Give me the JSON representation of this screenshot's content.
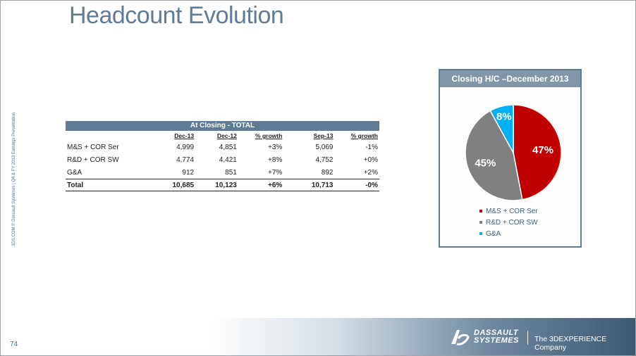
{
  "slide": {
    "title": "Headcount Evolution",
    "side_caption": "3DS.COM © Dassault Systèmes | Q4 & FY 2013 Earnings Presentation",
    "page_number": "74"
  },
  "table": {
    "header": "At Closing - TOTAL",
    "columns": [
      "Dec-13",
      "Dec-12",
      "% growth",
      "Sep-13",
      "% growth"
    ],
    "rows": [
      {
        "label": "M&S + COR Ser",
        "values": [
          "4,999",
          "4,851",
          "+3%",
          "5,069",
          "-1%"
        ]
      },
      {
        "label": "R&D + COR SW",
        "values": [
          "4,774",
          "4,421",
          "+8%",
          "4,752",
          "+0%"
        ]
      },
      {
        "label": "G&A",
        "values": [
          "912",
          "851",
          "+7%",
          "892",
          "+2%"
        ]
      },
      {
        "label": "Total",
        "values": [
          "10,685",
          "10,123",
          "+6%",
          "10,713",
          "-0%"
        ]
      }
    ]
  },
  "chart_data": {
    "type": "pie",
    "title": "Closing H/C –December 2013",
    "legend": "bottom",
    "slices": [
      {
        "name": "M&S + COR Ser",
        "value": 47,
        "label": "47%",
        "color": "#c00000"
      },
      {
        "name": "R&D + COR SW",
        "value": 45,
        "label": "45%",
        "color": "#808080"
      },
      {
        "name": "G&A",
        "value": 8,
        "label": "8%",
        "color": "#00b0f0"
      }
    ]
  },
  "footer": {
    "logo_line1": "DASSAULT",
    "logo_line2": "SYSTEMES",
    "tagline": "The 3DEXPERIENCE Company"
  }
}
